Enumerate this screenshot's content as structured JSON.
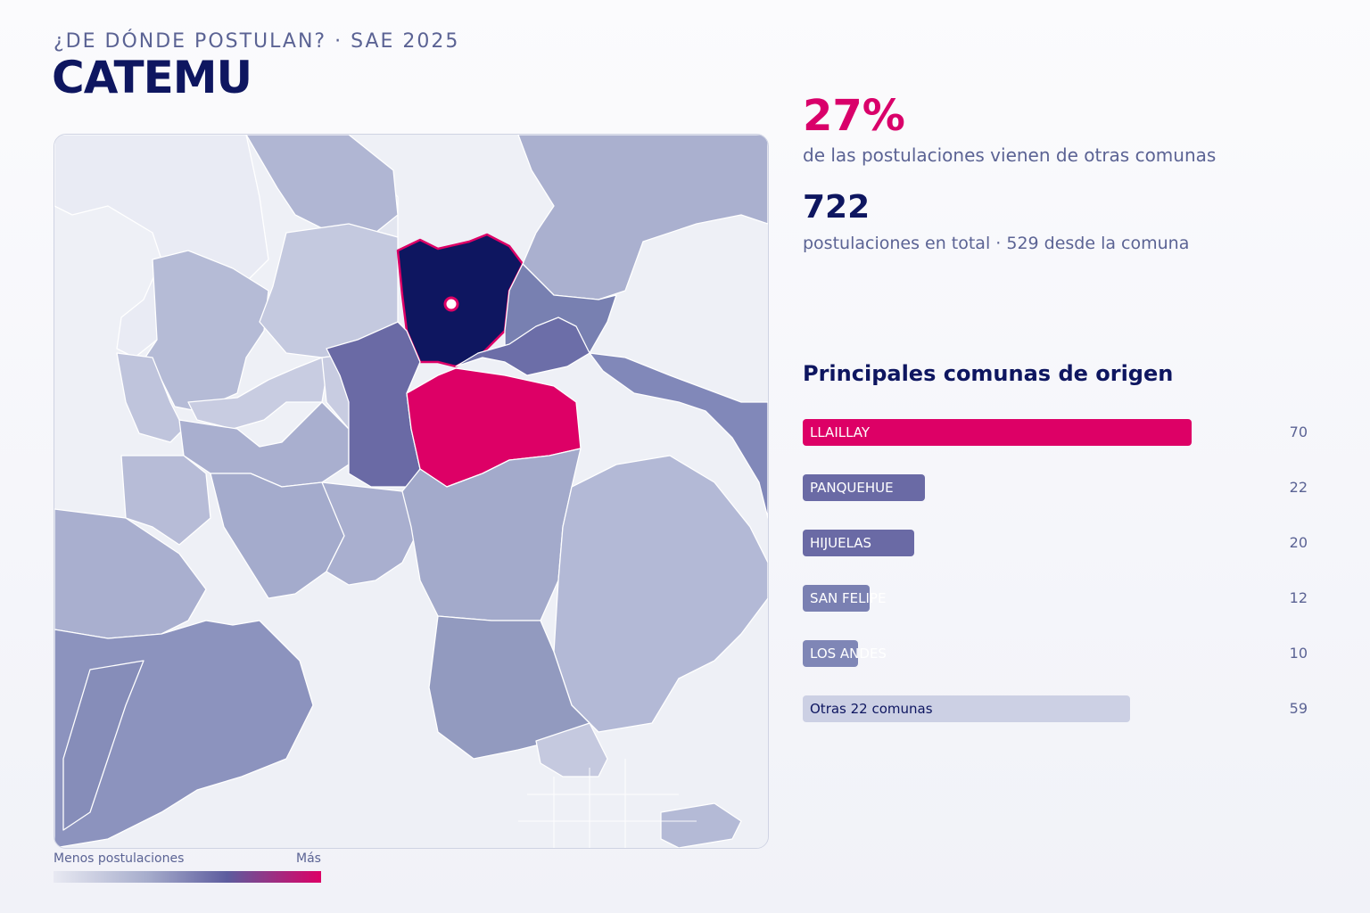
{
  "header": {
    "kicker": "¿DE DÓNDE POSTULAN? · SAE 2025",
    "title": "CATEMU"
  },
  "stats": {
    "percent": "27%",
    "percent_caption": "de las postulaciones vienen de otras comunas",
    "total": "722",
    "total_caption": "postulaciones en total · 529 desde la comuna"
  },
  "origins": {
    "title": "Principales comunas de origen",
    "max_value": 70,
    "items": [
      {
        "label": "LLAILLAY",
        "value": 70,
        "color": "#dd0066"
      },
      {
        "label": "PANQUEHUE",
        "value": 22,
        "color": "#6a6aa5"
      },
      {
        "label": "HIJUELAS",
        "value": 20,
        "color": "#6a6aa5"
      },
      {
        "label": "SAN FELIPE",
        "value": 12,
        "color": "#7a80b2"
      },
      {
        "label": "LOS ANDES",
        "value": 10,
        "color": "#7f86b6"
      },
      {
        "label": "Otras 22 comunas",
        "value": 59,
        "color": "#ccd0e4"
      }
    ]
  },
  "legend": {
    "min_label": "Menos postulaciones",
    "max_label": "Más"
  },
  "colors": {
    "highlight": "#0e1660",
    "top_origin": "#dd0066",
    "accent_text": "#5b6394"
  }
}
